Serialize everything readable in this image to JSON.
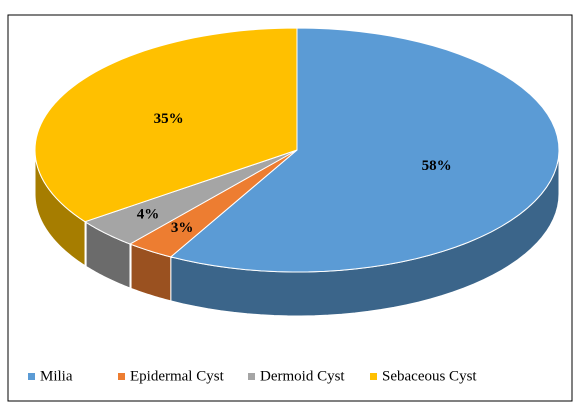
{
  "chart_data": {
    "type": "pie",
    "categories": [
      "Milia",
      "Epidermal Cyst",
      "Dermoid Cyst",
      "Sebaceous Cyst"
    ],
    "values": [
      58,
      3,
      4,
      35
    ],
    "value_labels": [
      "58%",
      "3%",
      "4%",
      "35%"
    ],
    "colors": [
      "#5b9bd5",
      "#ed7d31",
      "#a5a5a5",
      "#ffc000"
    ],
    "legend": "bottom"
  }
}
